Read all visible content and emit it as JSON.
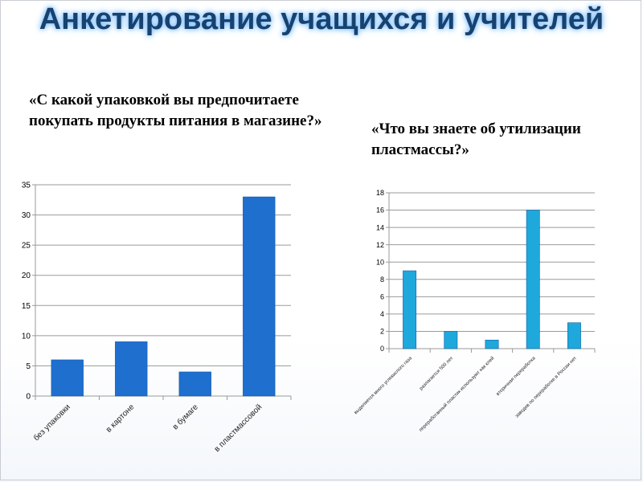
{
  "title": "Анкетирование учащихся и учителей",
  "question1": "«С какой упаковкой вы предпочитаете покупать продукты питания  в магазине?»",
  "question2": "«Что вы знаете об утилизации пластмассы?»",
  "colors": {
    "title": "#17426e",
    "bar1": "#1f6fcf",
    "bar2": "#1ea8dc",
    "grid": "#9a9a9a"
  },
  "chart_data": [
    {
      "type": "bar",
      "categories": [
        "без упаковки",
        "в картоне",
        "в бумаге",
        "в пластмассовой"
      ],
      "values": [
        6,
        9,
        4,
        33
      ],
      "ylim": [
        0,
        35
      ],
      "yticks": [
        0,
        5,
        10,
        15,
        20,
        25,
        30,
        35
      ],
      "grid": true
    },
    {
      "type": "bar",
      "categories": [
        "выделяется много углекислого газа",
        "разлагается 500 лет",
        "переработанный пластик используют как клей",
        "вторичная переработка",
        "заводов по переработке в России нет"
      ],
      "values": [
        9,
        2,
        1,
        16,
        3
      ],
      "ylim": [
        0,
        18
      ],
      "yticks": [
        0,
        2,
        4,
        6,
        8,
        10,
        12,
        14,
        16,
        18
      ],
      "grid": true
    }
  ]
}
